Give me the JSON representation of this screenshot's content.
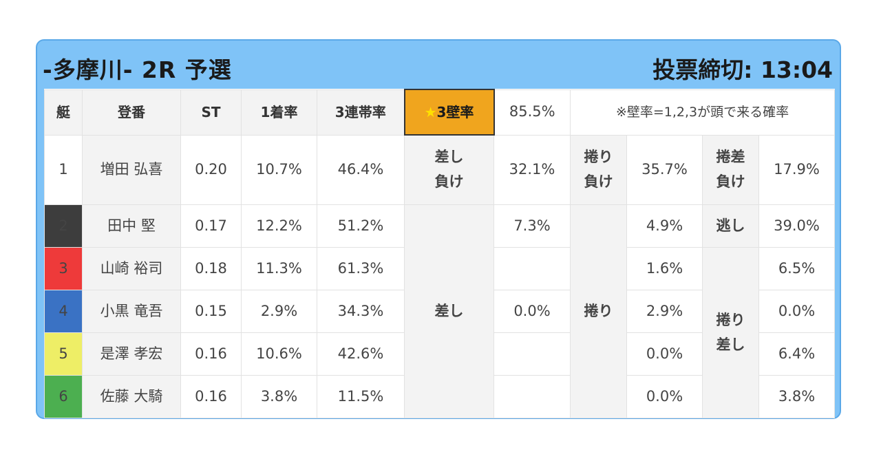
{
  "header": {
    "race_title": "-多摩川- 2R 予選",
    "deadline": "投票締切: 13:04"
  },
  "table": {
    "headers": {
      "lane": "艇",
      "racer": "登番",
      "st": "ST",
      "first_rate": "1着率",
      "top3_rate": "3連帯率",
      "wall_label_star": "★",
      "wall_label": "3壁率",
      "wall_value": "85.5%",
      "note": "※壁率=1,2,3が頭で来る確率"
    },
    "rows": [
      {
        "lane": "1",
        "name": "増田 弘喜",
        "st": "0.20",
        "first": "10.7%",
        "top3": "46.4%",
        "c3": "",
        "c4": "",
        "c5": "35.7%",
        "c6": "",
        "c7": "17.9%"
      },
      {
        "lane": "2",
        "name": "田中 堅",
        "st": "0.17",
        "first": "12.2%",
        "top3": "51.2%",
        "c3": "7.3%",
        "c5": "4.9%",
        "c7": "39.0%"
      },
      {
        "lane": "3",
        "name": "山崎 裕司",
        "st": "0.18",
        "first": "11.3%",
        "top3": "61.3%",
        "c3": "",
        "c5": "1.6%",
        "c7": "6.5%"
      },
      {
        "lane": "4",
        "name": "小黒 竜吾",
        "st": "0.15",
        "first": "2.9%",
        "top3": "34.3%",
        "c3": "0.0%",
        "c5": "2.9%",
        "c7": "0.0%"
      },
      {
        "lane": "5",
        "name": "是澤 孝宏",
        "st": "0.16",
        "first": "10.6%",
        "top3": "42.6%",
        "c3": "",
        "c5": "0.0%",
        "c7": "6.4%"
      },
      {
        "lane": "6",
        "name": "佐藤 大騎",
        "st": "0.16",
        "first": "3.8%",
        "top3": "11.5%",
        "c3": "",
        "c5": "0.0%",
        "c7": "3.8%"
      }
    ],
    "row1": {
      "label_a": "差し\n負け",
      "value_a": "32.1%",
      "label_b": "捲り\n負け",
      "value_b": "35.7%",
      "label_c": "捲差\n負け",
      "value_c": "17.9%"
    },
    "merged": {
      "sashi": "差し",
      "makuri": "捲り",
      "nige": "逃し",
      "makuri_sashi": "捲り\n差し"
    }
  },
  "colors": {
    "panel_bg": "#7fc3f7",
    "highlight": "#f0a51e",
    "lane_1": "#ffffff",
    "lane_2": "#3d3d3d",
    "lane_3": "#ee3a3a",
    "lane_4": "#3a72c4",
    "lane_5": "#eeee66",
    "lane_6": "#4caf50"
  }
}
